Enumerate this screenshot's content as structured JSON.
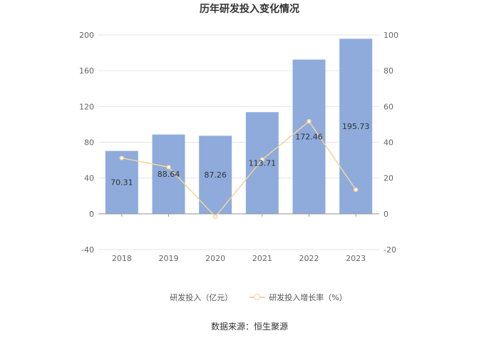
{
  "chart_data": {
    "type": "bar",
    "title": "历年研发投入变化情况",
    "categories": [
      "2018",
      "2019",
      "2020",
      "2021",
      "2022",
      "2023"
    ],
    "series": [
      {
        "name": "研发投入（亿元）",
        "type": "bar",
        "axis": "left",
        "values": [
          70.31,
          88.64,
          87.26,
          113.71,
          172.46,
          195.73
        ],
        "labels": [
          "70.31",
          "88.64",
          "87.26",
          "113.71",
          "172.46",
          "195.73"
        ],
        "color": "#8eabdc"
      },
      {
        "name": "研发投入增长率（%）",
        "type": "line",
        "axis": "right",
        "values": [
          31.2,
          26.1,
          -1.6,
          30.3,
          51.7,
          13.5
        ],
        "color": "#f5d39b"
      }
    ],
    "y_left": {
      "min": -40,
      "max": 200,
      "ticks": [
        "200",
        "160",
        "120",
        "80",
        "40",
        "0",
        "-40"
      ]
    },
    "y_right": {
      "min": -20,
      "max": 100,
      "ticks": [
        "100",
        "80",
        "60",
        "40",
        "20",
        "0",
        "-20"
      ]
    },
    "grid": true,
    "legend_position": "bottom",
    "source": "数据来源：恒生聚源"
  }
}
